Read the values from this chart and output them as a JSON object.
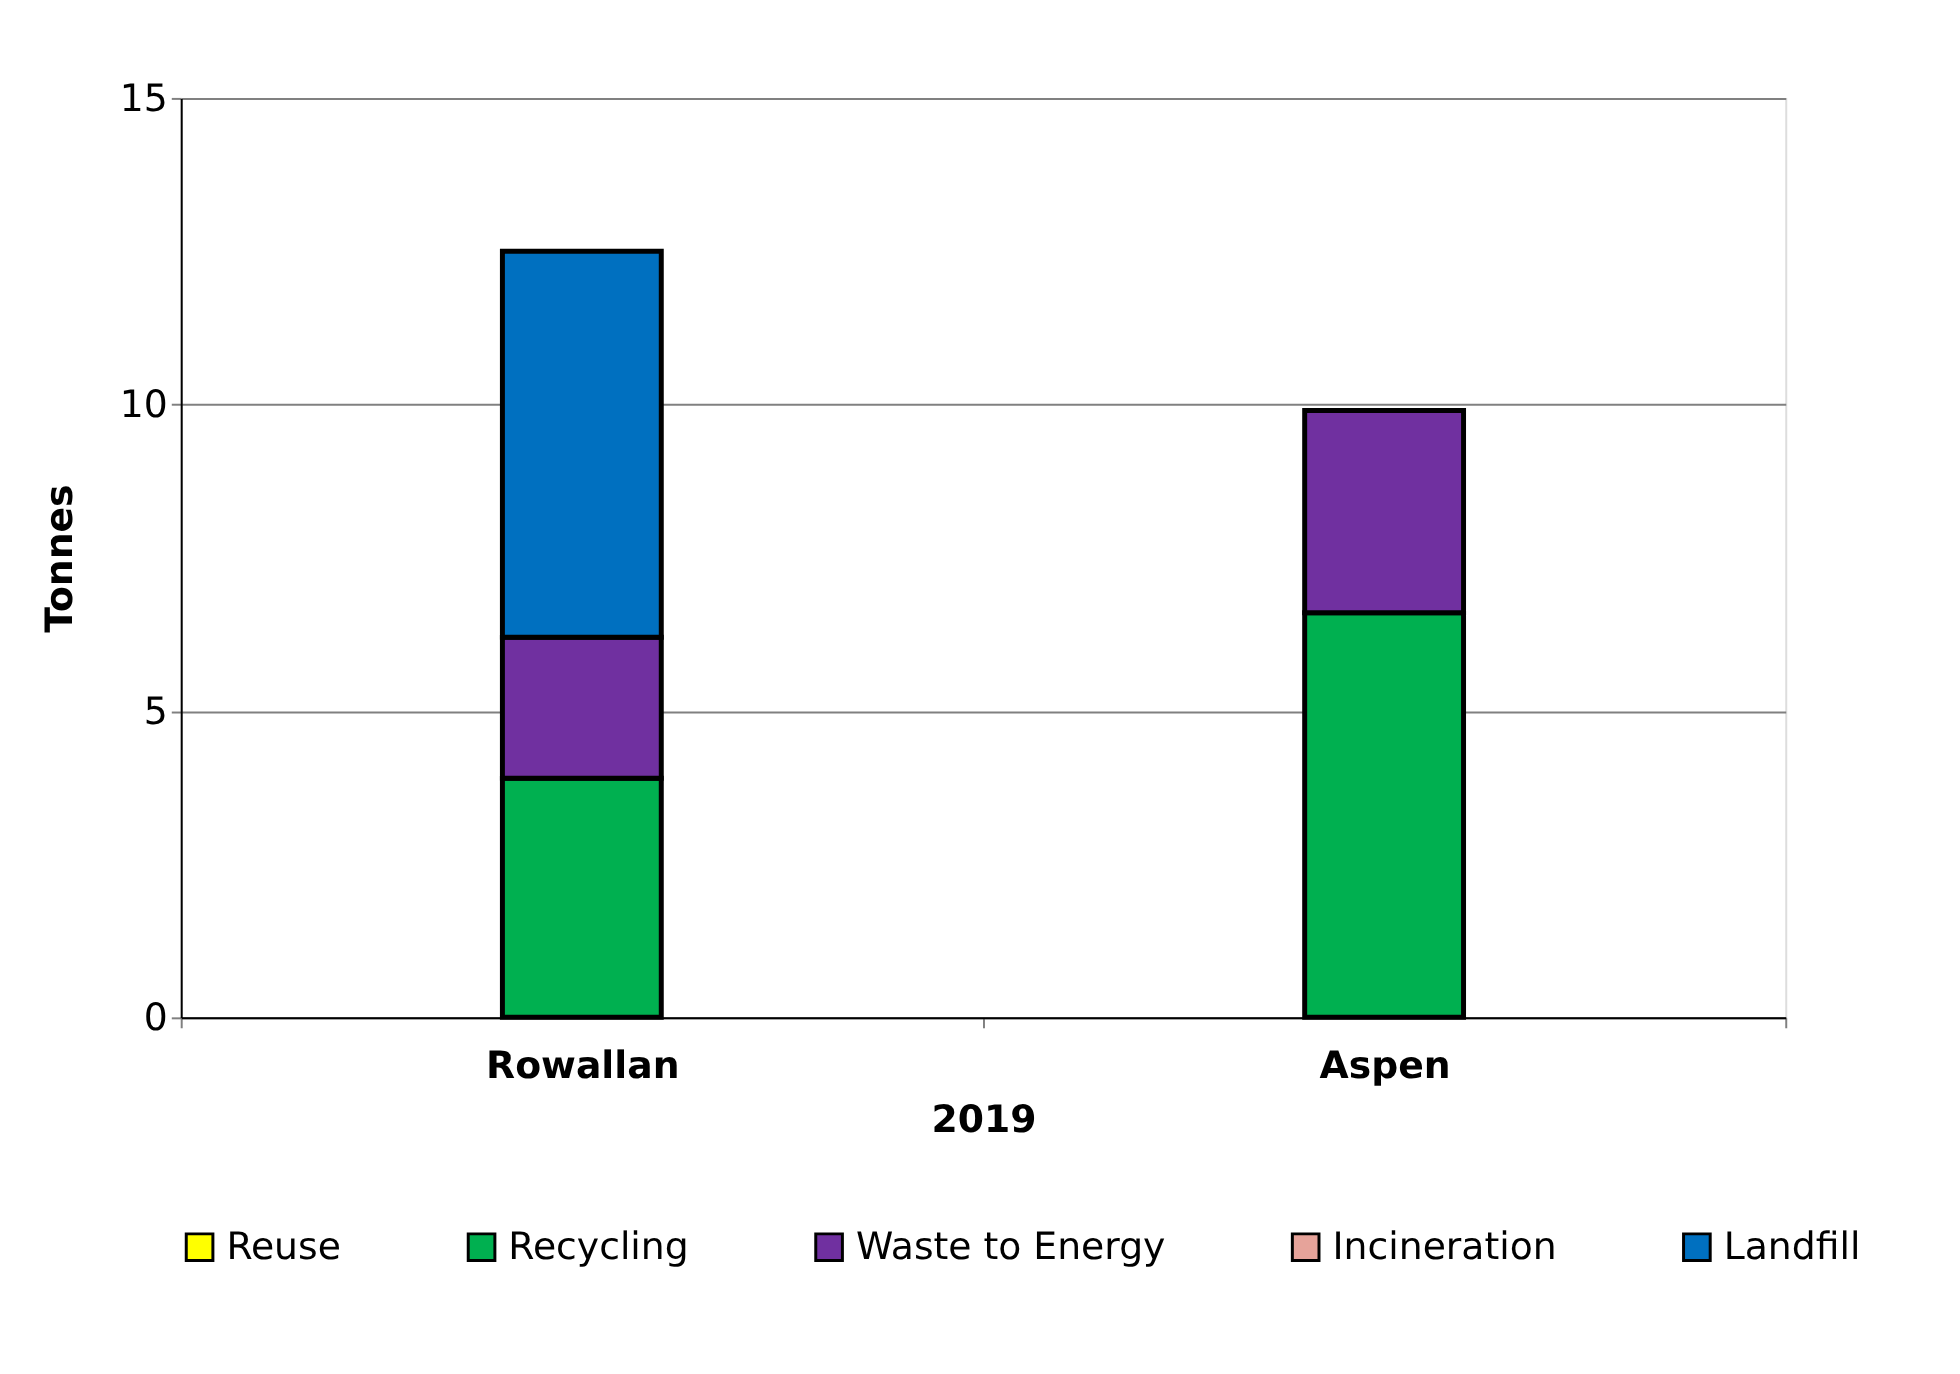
{
  "chart_data": {
    "type": "bar",
    "stacked": true,
    "xlabel": "2019",
    "ylabel": "Tonnes",
    "categories": [
      "Rowallan",
      "Aspen"
    ],
    "series": [
      {
        "name": "Reuse",
        "color": "#ffff00",
        "values": [
          0,
          0
        ]
      },
      {
        "name": "Recycling",
        "color": "#00b050",
        "values": [
          3.9,
          6.6
        ]
      },
      {
        "name": "Waste to Energy",
        "color": "#7030a0",
        "values": [
          2.3,
          3.3
        ]
      },
      {
        "name": "Incineration",
        "color": "#e6a39a",
        "values": [
          0,
          0
        ]
      },
      {
        "name": "Landfill",
        "color": "#0070c0",
        "values": [
          6.3,
          0
        ]
      }
    ],
    "ylim": [
      0,
      15
    ],
    "yticks": [
      0,
      5,
      10,
      15
    ],
    "grid": "y",
    "legend": "bottom"
  }
}
